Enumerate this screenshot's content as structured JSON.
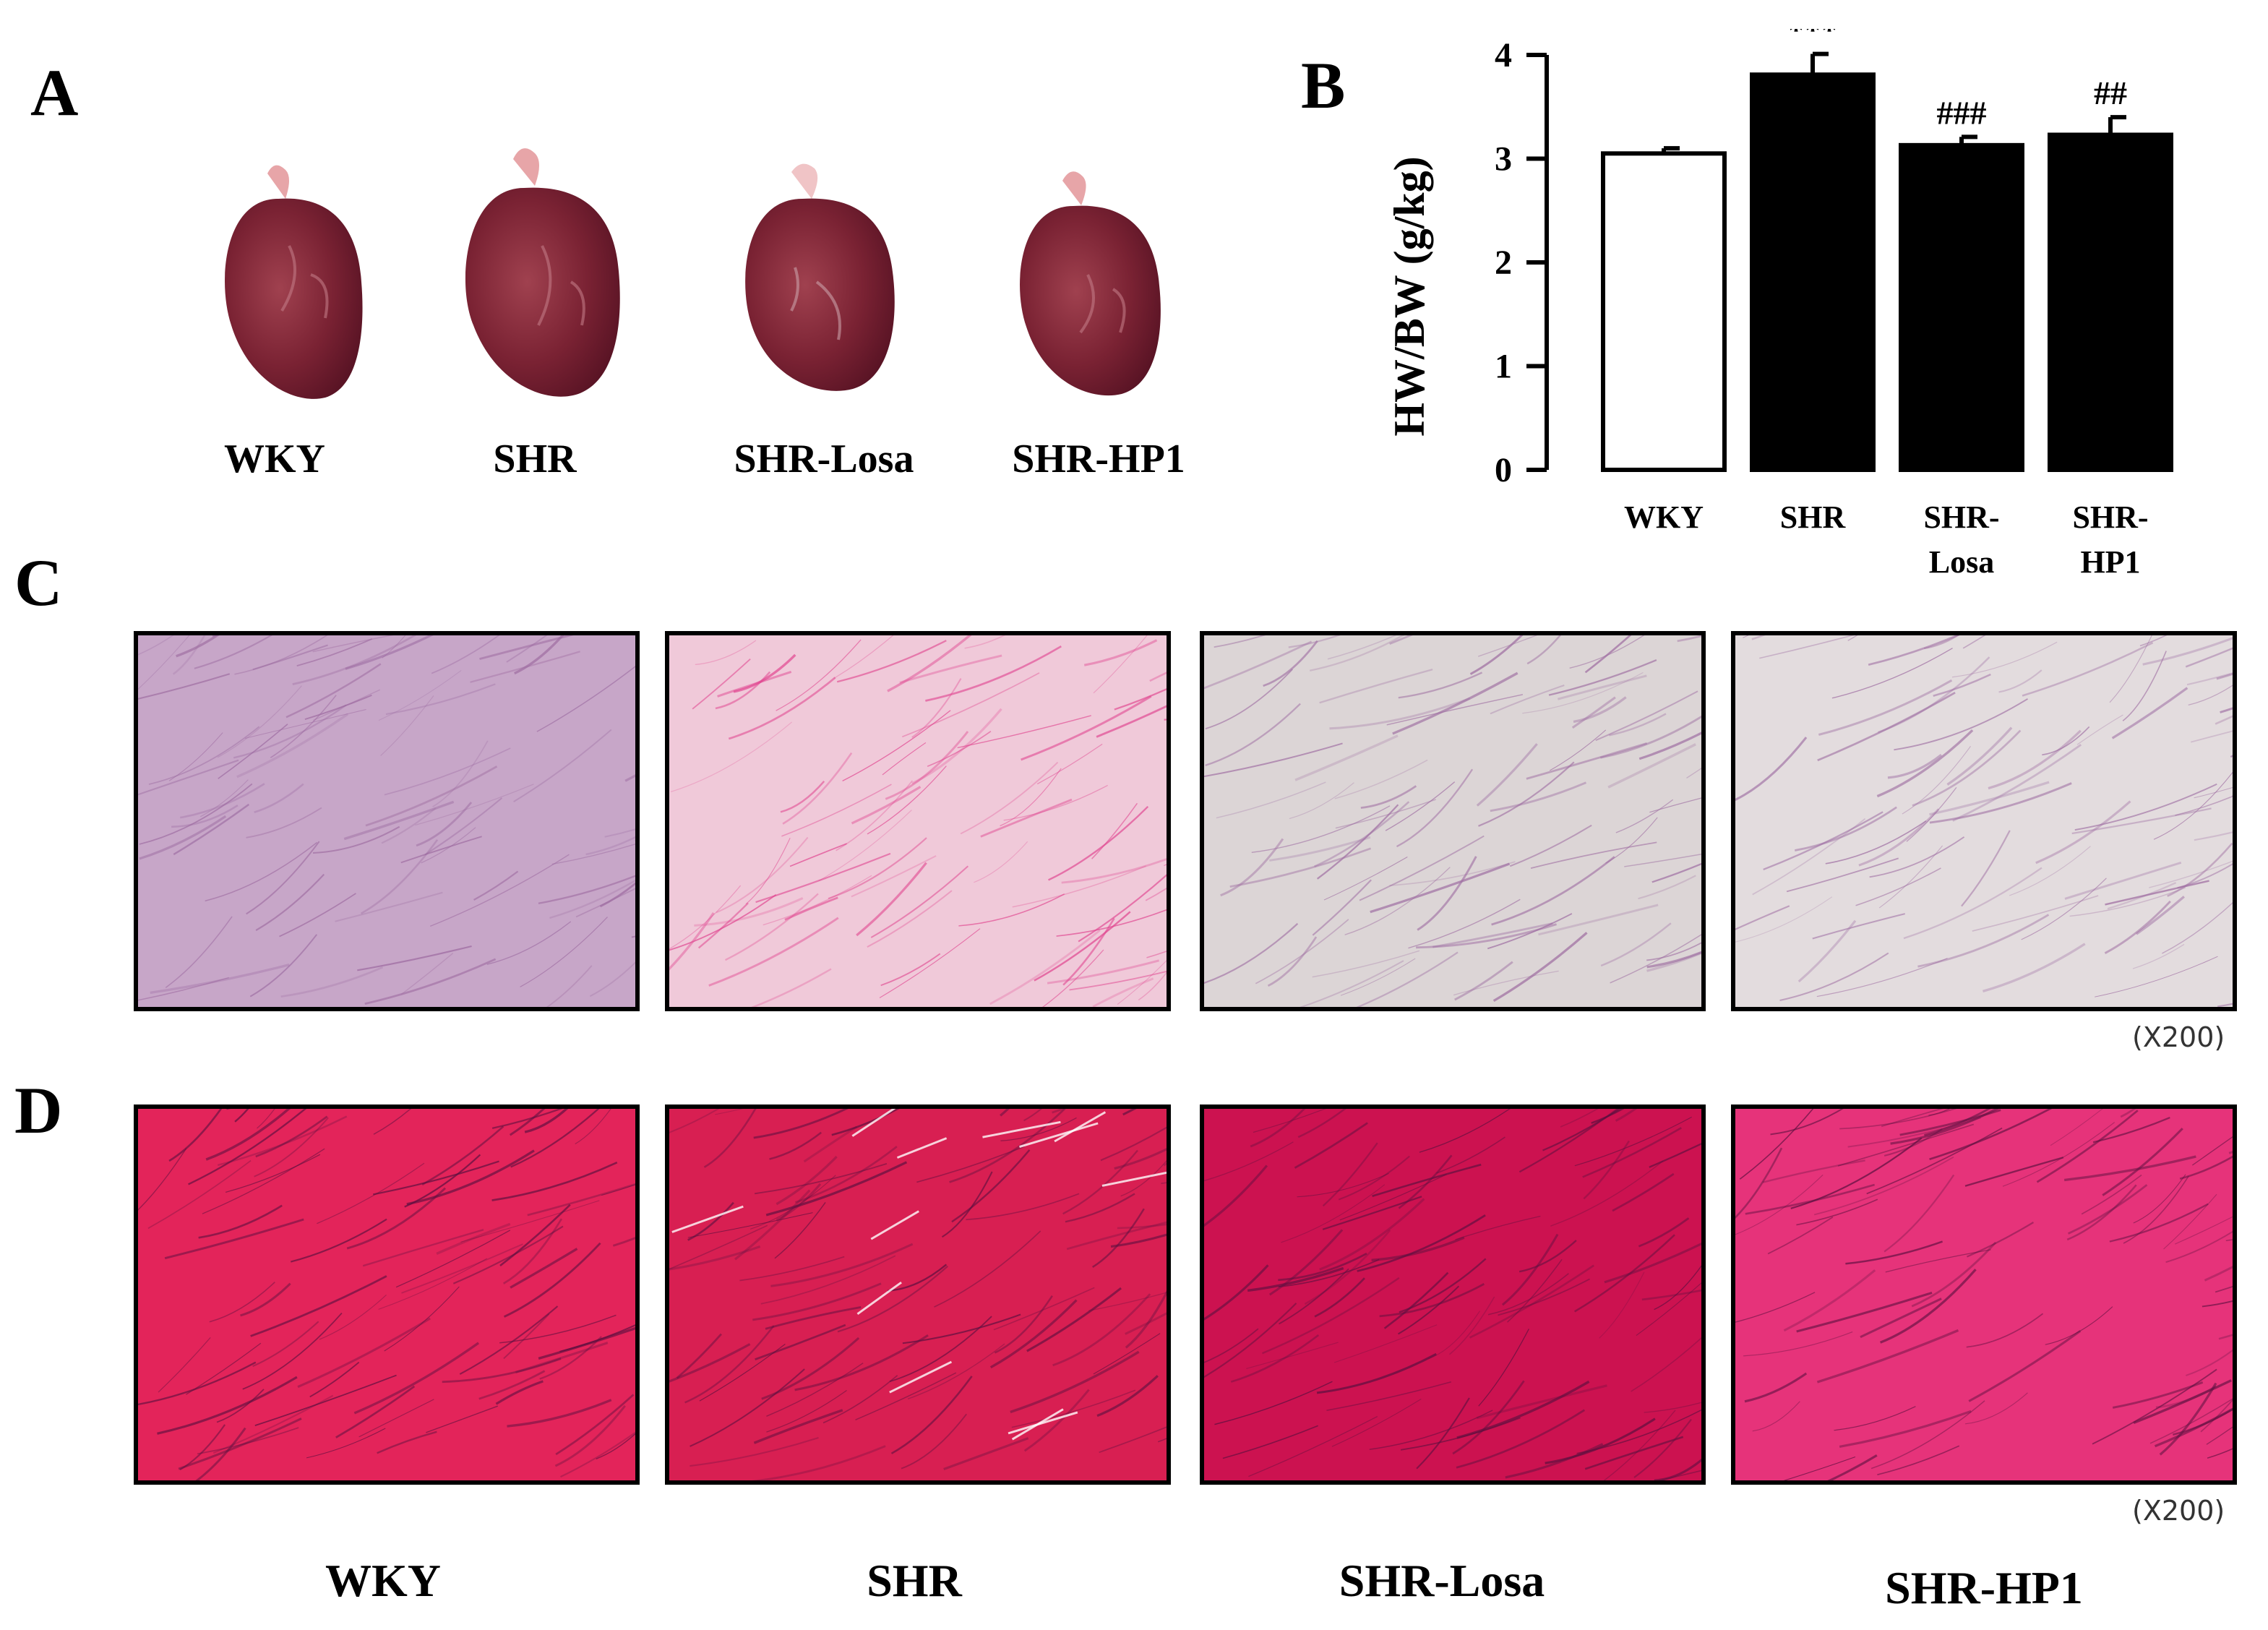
{
  "panels": {
    "A": "A",
    "B": "B",
    "C": "C",
    "D": "D"
  },
  "hearts": {
    "labels": [
      "WKY",
      "SHR",
      "SHR-Losa",
      "SHR-HP1"
    ]
  },
  "magnification": {
    "C": "(X200)",
    "D": "(X200)"
  },
  "bottom_labels": [
    "WKY",
    "SHR",
    "SHR-Losa",
    "SHR-HP1"
  ],
  "stain_colors": {
    "C": [
      "#c7a6c8",
      "#f0c9d9",
      "#dcd5d6",
      "#e3dcde"
    ],
    "D": [
      "#e3245a",
      "#d81f52",
      "#cc1250",
      "#e6337a"
    ]
  },
  "chart_data": {
    "type": "bar",
    "ylabel": "HW/BW (g/kg)",
    "categories": [
      {
        "line1": "WKY",
        "line2": ""
      },
      {
        "line1": "SHR",
        "line2": ""
      },
      {
        "line1": "SHR-",
        "line2": "Losa"
      },
      {
        "line1": "SHR-",
        "line2": "HP1"
      }
    ],
    "values": [
      3.05,
      3.81,
      3.13,
      3.23
    ],
    "errors": [
      0.05,
      0.2,
      0.08,
      0.17
    ],
    "annotations": [
      "",
      "***",
      "###",
      "##"
    ],
    "fills": [
      "#ffffff",
      "#000000",
      "#000000",
      "#000000"
    ],
    "ylim": [
      0,
      4
    ],
    "yticks": [
      "0",
      "1",
      "2",
      "3",
      "4"
    ]
  }
}
